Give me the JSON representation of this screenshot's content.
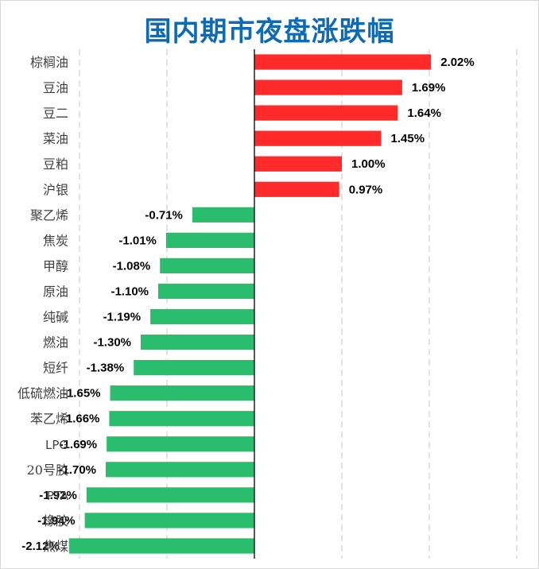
{
  "chart_data": {
    "type": "bar",
    "orientation": "horizontal",
    "title": "国内期市夜盘涨跌幅",
    "categories": [
      "棕榈油",
      "豆油",
      "豆二",
      "菜油",
      "豆粕",
      "沪银",
      "聚乙烯",
      "焦炭",
      "甲醇",
      "原油",
      "纯碱",
      "燃油",
      "短纤",
      "低硫燃油",
      "苯乙烯",
      "LPG",
      "20号胶",
      "PTA",
      "橡胶",
      "焦煤"
    ],
    "values": [
      2.02,
      1.69,
      1.64,
      1.45,
      1.0,
      0.97,
      -0.71,
      -1.01,
      -1.08,
      -1.1,
      -1.19,
      -1.3,
      -1.38,
      -1.65,
      -1.66,
      -1.69,
      -1.7,
      -1.92,
      -1.94,
      -2.12
    ],
    "value_labels": [
      "2.02%",
      "1.69%",
      "1.64%",
      "1.45%",
      "1.00%",
      "0.97%",
      "-0.71%",
      "-1.01%",
      "-1.08%",
      "-1.10%",
      "-1.19%",
      "-1.30%",
      "-1.38%",
      "-1.65%",
      "-1.66%",
      "-1.69%",
      "-1.70%",
      "-1.92%",
      "-1.94%",
      "-2.12%"
    ],
    "xlim": [
      -2.0,
      3.0
    ],
    "grid": "vertical dashed",
    "legend": "none",
    "colors": {
      "positive": "#ff2a2a",
      "negative": "#2bbd6e",
      "title": "#0f6ab4",
      "grid": "#d0d0d0",
      "axis": "#000000"
    }
  }
}
